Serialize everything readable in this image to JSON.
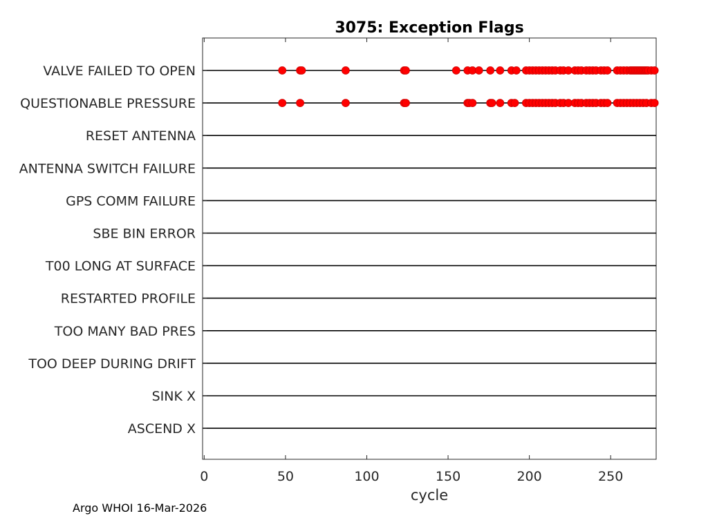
{
  "chart_data": {
    "type": "scatter",
    "title": "3075: Exception Flags",
    "xlabel": "cycle",
    "ylabel": "",
    "xlim": [
      -1,
      278
    ],
    "xticks": [
      0,
      50,
      100,
      150,
      200,
      250
    ],
    "grid": false,
    "legend": "none",
    "categories": [
      "VALVE FAILED TO OPEN",
      "QUESTIONABLE PRESSURE",
      "RESET ANTENNA",
      "ANTENNA SWITCH FAILURE",
      "GPS COMM FAILURE",
      "SBE BIN ERROR",
      "T00 LONG AT SURFACE",
      "RESTARTED PROFILE",
      "TOO MANY BAD PRES",
      "TOO DEEP DURING DRIFT",
      "SINK X",
      "ASCEND X"
    ],
    "line_color": "#000000",
    "marker_color": "#ff0000",
    "series": [
      {
        "category": "VALVE FAILED TO OPEN",
        "x": [
          48,
          59,
          60,
          87,
          123,
          124,
          155,
          162,
          165,
          169,
          176,
          182,
          189,
          192,
          198,
          200,
          202,
          204,
          206,
          208,
          210,
          212,
          214,
          216,
          219,
          221,
          224,
          228,
          230,
          232,
          235,
          237,
          239,
          241,
          244,
          246,
          248,
          254,
          256,
          258,
          260,
          262,
          263,
          264,
          265,
          266,
          267,
          268,
          269,
          270,
          271,
          272,
          273,
          275,
          277
        ]
      },
      {
        "category": "QUESTIONABLE PRESSURE",
        "x": [
          48,
          59,
          87,
          123,
          124,
          162,
          163,
          165,
          176,
          177,
          182,
          189,
          191,
          198,
          200,
          202,
          204,
          206,
          208,
          210,
          212,
          214,
          216,
          219,
          221,
          224,
          228,
          230,
          232,
          235,
          237,
          239,
          241,
          244,
          246,
          248,
          254,
          256,
          258,
          260,
          262,
          264,
          266,
          268,
          270,
          272,
          275,
          277
        ]
      },
      {
        "category": "RESET ANTENNA",
        "x": []
      },
      {
        "category": "ANTENNA SWITCH FAILURE",
        "x": []
      },
      {
        "category": "GPS COMM FAILURE",
        "x": []
      },
      {
        "category": "SBE BIN ERROR",
        "x": []
      },
      {
        "category": "T00 LONG AT SURFACE",
        "x": []
      },
      {
        "category": "RESTARTED PROFILE",
        "x": []
      },
      {
        "category": "TOO MANY BAD PRES",
        "x": []
      },
      {
        "category": "TOO DEEP DURING DRIFT",
        "x": []
      },
      {
        "category": "SINK X",
        "x": []
      },
      {
        "category": "ASCEND X",
        "x": []
      }
    ]
  },
  "footer": "Argo WHOI 16-Mar-2026"
}
